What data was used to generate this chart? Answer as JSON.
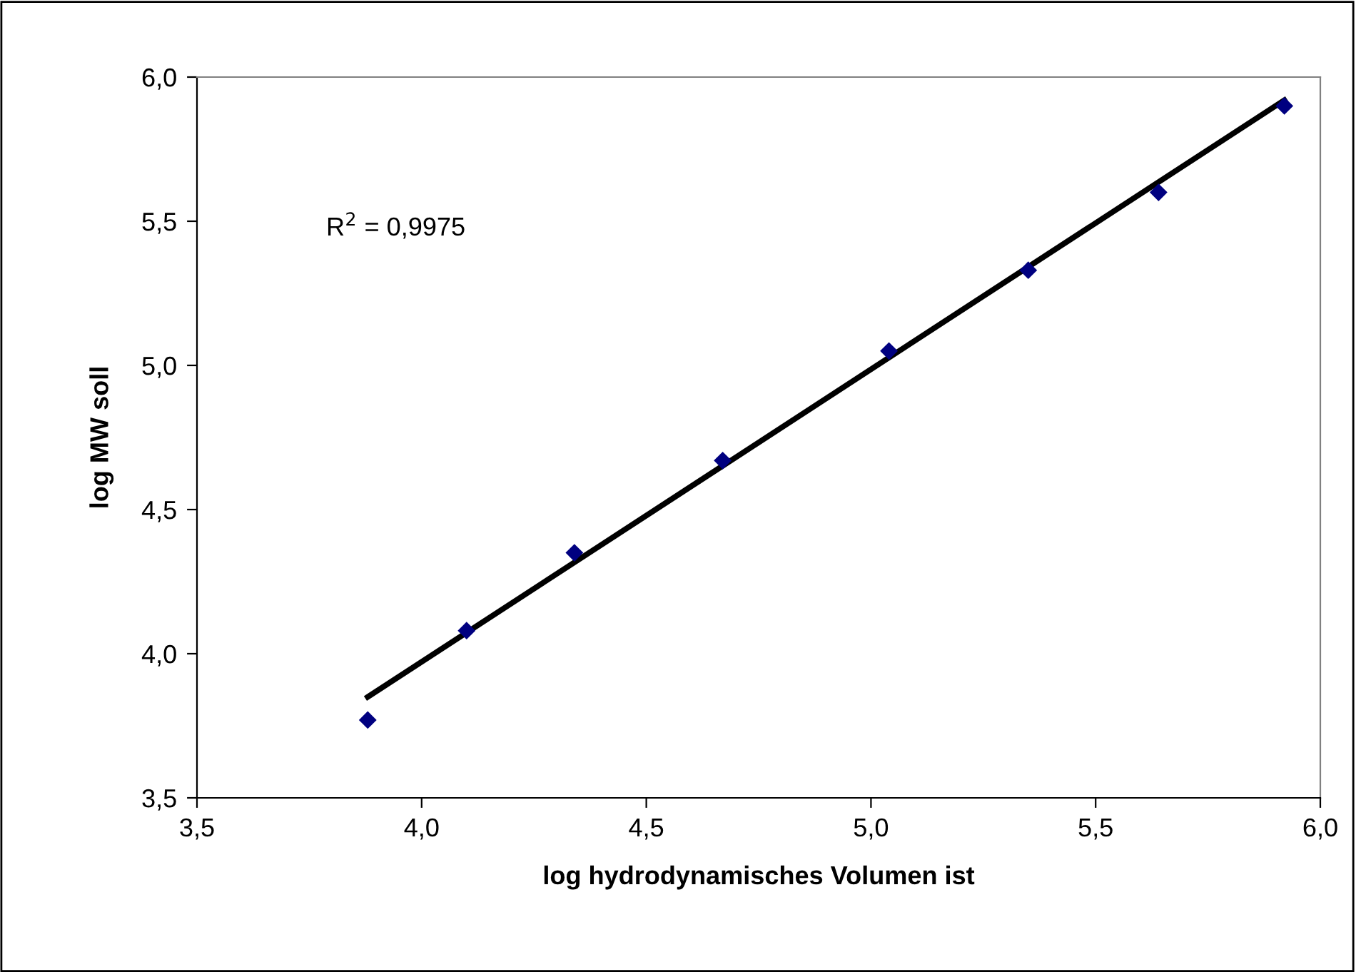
{
  "chart_data": {
    "type": "scatter",
    "xlabel": "log hydrodynamisches Volumen ist",
    "ylabel": "log MW soll",
    "annotations": [
      "R$^{2}$ = 0,9975"
    ],
    "series": [
      {
        "color": "#000080",
        "marker": "diamond",
        "x": [
          3.88,
          4.1,
          4.34,
          4.67,
          5.04,
          5.35,
          5.64,
          5.92
        ],
        "values": [
          3.77,
          4.08,
          4.35,
          4.67,
          5.05,
          5.33,
          5.6,
          5.9
        ]
      },
      {
        "type": "line",
        "color": "#000000",
        "marker": "none",
        "line_style": "solid",
        "x": [
          3.88,
          5.92
        ],
        "values": [
          3.85,
          5.92
        ]
      }
    ],
    "xlim": [
      3.5,
      6.0
    ],
    "ylim": [
      3.5,
      6.0
    ],
    "xticks": [
      {
        "value": 3.5,
        "label": "3,5"
      },
      {
        "value": 4.0,
        "label": "4,0"
      },
      {
        "value": 4.5,
        "label": "4,5"
      },
      {
        "value": 5.0,
        "label": "5,0"
      },
      {
        "value": 5.5,
        "label": "5,5"
      },
      {
        "value": 6.0,
        "label": "6,0"
      }
    ],
    "yticks": [
      {
        "value": 3.5,
        "label": "3,5"
      },
      {
        "value": 4.0,
        "label": "4,0"
      },
      {
        "value": 4.5,
        "label": "4,5"
      },
      {
        "value": 5.0,
        "label": "5,0"
      },
      {
        "value": 5.5,
        "label": "5,5"
      },
      {
        "value": 6.0,
        "label": "6,0"
      }
    ],
    "grid": false,
    "legend": false
  }
}
